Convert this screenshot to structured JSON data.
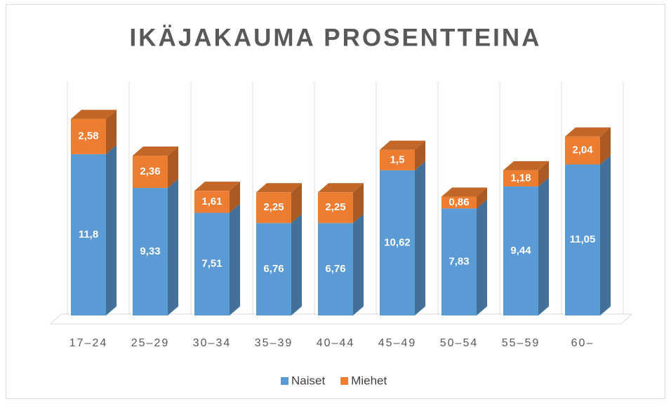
{
  "chart_data": {
    "type": "bar3d_stacked",
    "title": "IKÄJAKAUMA PROSENTTEINA",
    "categories": [
      "17–24",
      "25–29",
      "30–34",
      "35–39",
      "40–44",
      "45–49",
      "50–54",
      "55–59",
      "60–"
    ],
    "series": [
      {
        "name": "Naiset",
        "color": "#5b9bd5",
        "values": [
          11.8,
          9.33,
          7.51,
          6.76,
          6.76,
          10.62,
          7.83,
          9.44,
          11.05
        ],
        "value_labels": [
          "11,8",
          "9,33",
          "7,51",
          "6,76",
          "6,76",
          "10,62",
          "7,83",
          "9,44",
          "11,05"
        ]
      },
      {
        "name": "Miehet",
        "color": "#ed7d31",
        "values": [
          2.58,
          2.36,
          1.61,
          2.25,
          2.25,
          1.5,
          0.86,
          1.18,
          2.04
        ],
        "value_labels": [
          "2,58",
          "2,36",
          "1,61",
          "2,25",
          "2,25",
          "1,5",
          "0,86",
          "1,18",
          "2,04"
        ]
      }
    ],
    "legend": "bottom"
  }
}
